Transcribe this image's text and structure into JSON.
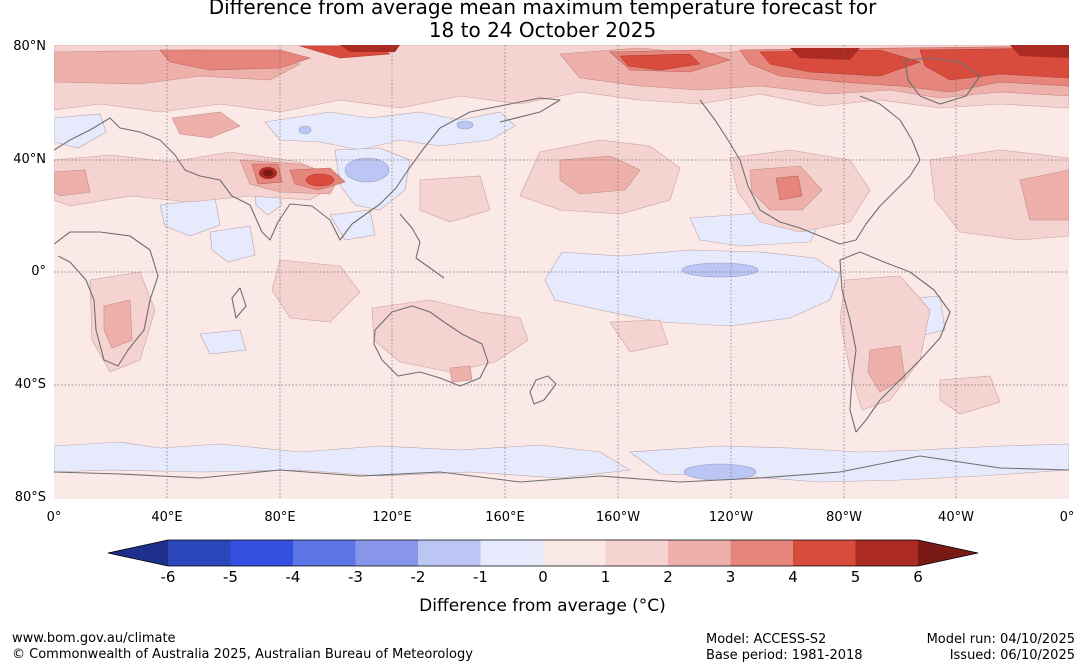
{
  "title": {
    "line1": "Difference from average mean maximum temperature forecast for",
    "line2": "18 to 24 October 2025"
  },
  "map": {
    "lat_labels": [
      "80°N",
      "40°N",
      "0°",
      "40°S",
      "80°S"
    ],
    "lon_labels": [
      "0°",
      "40°E",
      "80°E",
      "120°E",
      "160°E",
      "160°W",
      "120°W",
      "80°W",
      "40°W",
      "0°"
    ]
  },
  "colorbar": {
    "ticks": [
      "-6",
      "-5",
      "-4",
      "-3",
      "-2",
      "-1",
      "0",
      "1",
      "2",
      "3",
      "4",
      "5",
      "6"
    ],
    "colors": [
      "#1f2f8c",
      "#2a46b8",
      "#324fdf",
      "#5c74e6",
      "#8796ea",
      "#bcc6f4",
      "#e6eafc",
      "#fbe9e7",
      "#f5d3d0",
      "#eeb0aa",
      "#e6857c",
      "#d94b3d",
      "#ab2b22",
      "#7a1a16"
    ],
    "label": "Difference from average (°C)"
  },
  "footer": {
    "website": "www.bom.gov.au/climate",
    "copyright": "© Commonwealth of Australia 2025, Australian Bureau of Meteorology",
    "model": "Model: ACCESS-S2",
    "base_period": "Base period: 1981-2018",
    "model_run": "Model run: 04/10/2025",
    "issued": "Issued: 06/10/2025"
  }
}
